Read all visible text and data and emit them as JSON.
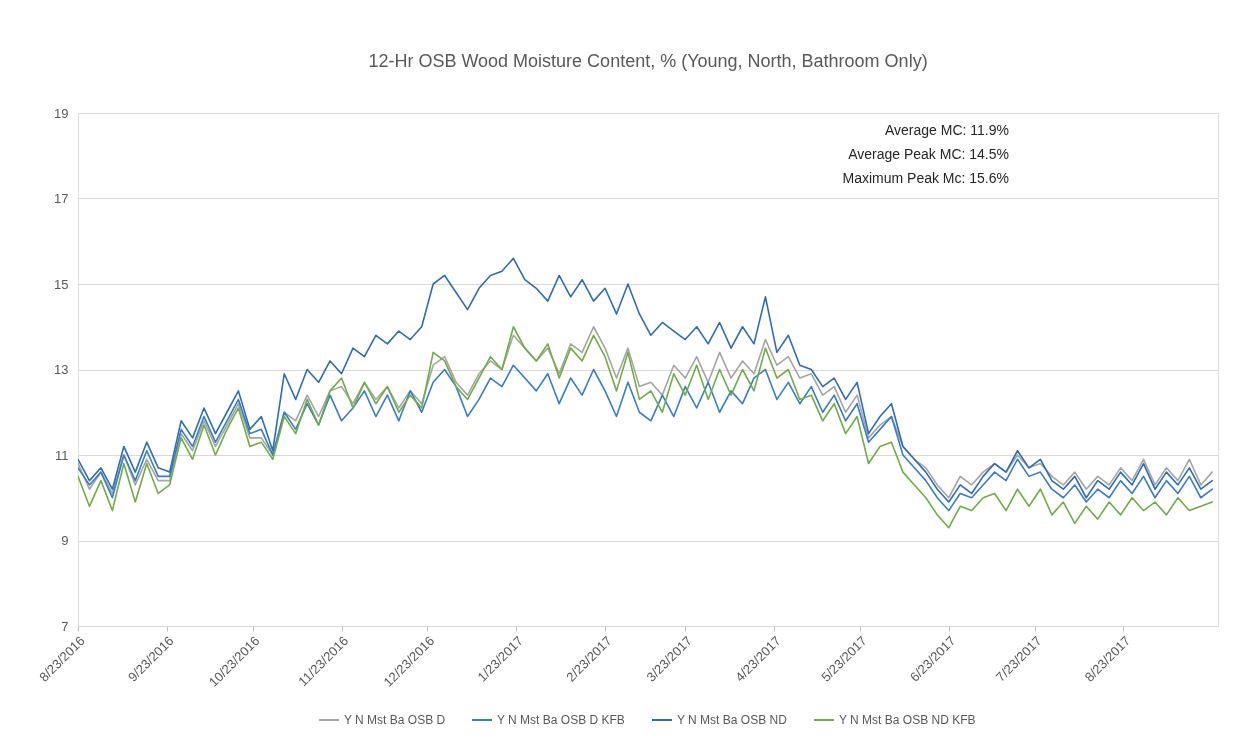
{
  "chart_data": {
    "type": "line",
    "title": "12-Hr OSB Wood Moisture Content, % (Young, North, Bathroom Only)",
    "annotations": [
      "Average MC: 11.9%",
      "Average Peak MC: 14.5%",
      "Maximum Peak Mc: 15.6%"
    ],
    "x": [
      "2016-08-23",
      "2016-08-27",
      "2016-08-31",
      "2016-09-04",
      "2016-09-08",
      "2016-09-12",
      "2016-09-16",
      "2016-09-20",
      "2016-09-24",
      "2016-09-28",
      "2016-10-02",
      "2016-10-06",
      "2016-10-10",
      "2016-10-14",
      "2016-10-18",
      "2016-10-22",
      "2016-10-26",
      "2016-10-30",
      "2016-11-03",
      "2016-11-07",
      "2016-11-11",
      "2016-11-15",
      "2016-11-19",
      "2016-11-23",
      "2016-11-27",
      "2016-12-01",
      "2016-12-05",
      "2016-12-09",
      "2016-12-13",
      "2016-12-17",
      "2016-12-21",
      "2016-12-25",
      "2016-12-29",
      "2017-01-02",
      "2017-01-06",
      "2017-01-10",
      "2017-01-14",
      "2017-01-18",
      "2017-01-22",
      "2017-01-26",
      "2017-01-30",
      "2017-02-03",
      "2017-02-07",
      "2017-02-11",
      "2017-02-15",
      "2017-02-19",
      "2017-02-23",
      "2017-02-27",
      "2017-03-03",
      "2017-03-07",
      "2017-03-11",
      "2017-03-15",
      "2017-03-19",
      "2017-03-23",
      "2017-03-27",
      "2017-03-31",
      "2017-04-04",
      "2017-04-08",
      "2017-04-12",
      "2017-04-16",
      "2017-04-20",
      "2017-04-24",
      "2017-04-28",
      "2017-05-02",
      "2017-05-06",
      "2017-05-10",
      "2017-05-14",
      "2017-05-18",
      "2017-05-22",
      "2017-05-26",
      "2017-05-30",
      "2017-06-03",
      "2017-06-07",
      "2017-06-11",
      "2017-06-15",
      "2017-06-19",
      "2017-06-23",
      "2017-06-27",
      "2017-07-01",
      "2017-07-05",
      "2017-07-09",
      "2017-07-13",
      "2017-07-17",
      "2017-07-21",
      "2017-07-25",
      "2017-07-29",
      "2017-08-02",
      "2017-08-06",
      "2017-08-10",
      "2017-08-14",
      "2017-08-18",
      "2017-08-22",
      "2017-08-26",
      "2017-08-30",
      "2017-09-03",
      "2017-09-07",
      "2017-09-11",
      "2017-09-15",
      "2017-09-19",
      "2017-09-23"
    ],
    "series": [
      {
        "name": "Y N Mst Ba OSB D",
        "color": "#a5a5a5",
        "values": [
          10.8,
          10.2,
          10.6,
          10.1,
          11.0,
          10.3,
          10.9,
          10.4,
          10.4,
          11.5,
          11.1,
          11.8,
          11.2,
          11.7,
          12.2,
          11.4,
          11.4,
          11.0,
          12.0,
          11.8,
          12.4,
          11.9,
          12.5,
          12.6,
          12.2,
          12.7,
          12.3,
          12.6,
          12.1,
          12.5,
          12.2,
          13.1,
          13.3,
          12.7,
          12.4,
          12.9,
          13.2,
          13.0,
          13.8,
          13.5,
          13.2,
          13.5,
          12.9,
          13.6,
          13.4,
          14.0,
          13.5,
          12.8,
          13.5,
          12.6,
          12.7,
          12.4,
          13.1,
          12.8,
          13.3,
          12.7,
          13.4,
          12.8,
          13.2,
          12.9,
          13.7,
          13.1,
          13.3,
          12.8,
          12.9,
          12.4,
          12.6,
          12.0,
          12.4,
          11.4,
          11.7,
          11.9,
          11.2,
          10.9,
          10.7,
          10.3,
          10.0,
          10.5,
          10.3,
          10.6,
          10.8,
          10.6,
          11.0,
          10.7,
          10.8,
          10.5,
          10.3,
          10.6,
          10.2,
          10.5,
          10.3,
          10.7,
          10.4,
          10.9,
          10.3,
          10.7,
          10.4,
          10.9,
          10.3,
          10.6
        ]
      },
      {
        "name": "Y N Mst Ba OSB D KFB",
        "color": "#3a7dc4",
        "values": [
          10.7,
          10.3,
          10.6,
          10.0,
          11.0,
          10.4,
          11.1,
          10.5,
          10.5,
          11.6,
          11.2,
          11.9,
          11.3,
          11.8,
          12.3,
          11.5,
          11.6,
          11.0,
          12.0,
          11.6,
          12.2,
          11.7,
          12.4,
          11.8,
          12.1,
          12.5,
          11.9,
          12.4,
          11.8,
          12.5,
          12.0,
          12.7,
          13.0,
          12.6,
          11.9,
          12.3,
          12.8,
          12.6,
          13.1,
          12.8,
          12.5,
          12.9,
          12.2,
          12.8,
          12.4,
          13.0,
          12.5,
          11.9,
          12.7,
          12.0,
          11.8,
          12.4,
          11.9,
          12.6,
          12.1,
          12.7,
          12.0,
          12.5,
          12.2,
          12.8,
          13.0,
          12.3,
          12.7,
          12.2,
          12.6,
          12.0,
          12.4,
          11.8,
          12.2,
          11.3,
          11.6,
          11.9,
          11.0,
          10.7,
          10.4,
          10.0,
          9.7,
          10.1,
          10.0,
          10.3,
          10.6,
          10.4,
          10.9,
          10.5,
          10.6,
          10.2,
          10.0,
          10.3,
          9.9,
          10.2,
          10.0,
          10.4,
          10.1,
          10.5,
          10.0,
          10.4,
          10.1,
          10.5,
          10.0,
          10.2
        ]
      },
      {
        "name": "Y N Mst Ba OSB ND",
        "color": "#2e6db4",
        "values": [
          10.9,
          10.4,
          10.7,
          10.2,
          11.2,
          10.6,
          11.3,
          10.7,
          10.6,
          11.8,
          11.4,
          12.1,
          11.5,
          12.0,
          12.5,
          11.6,
          11.9,
          11.1,
          12.9,
          12.3,
          13.0,
          12.7,
          13.2,
          12.9,
          13.5,
          13.3,
          13.8,
          13.6,
          13.9,
          13.7,
          14.0,
          15.0,
          15.2,
          14.8,
          14.4,
          14.9,
          15.2,
          15.3,
          15.6,
          15.1,
          14.9,
          14.6,
          15.2,
          14.7,
          15.1,
          14.6,
          14.9,
          14.3,
          15.0,
          14.3,
          13.8,
          14.1,
          13.9,
          13.7,
          14.0,
          13.6,
          14.1,
          13.5,
          14.0,
          13.6,
          14.7,
          13.4,
          13.8,
          13.1,
          13.0,
          12.6,
          12.8,
          12.3,
          12.7,
          11.5,
          11.9,
          12.2,
          11.2,
          10.9,
          10.6,
          10.2,
          9.9,
          10.3,
          10.1,
          10.5,
          10.8,
          10.6,
          11.1,
          10.7,
          10.9,
          10.4,
          10.2,
          10.5,
          10.0,
          10.4,
          10.2,
          10.6,
          10.3,
          10.8,
          10.2,
          10.6,
          10.3,
          10.7,
          10.2,
          10.4
        ]
      },
      {
        "name": "Y N Mst Ba OSB ND KFB",
        "color": "#70ad47",
        "values": [
          10.5,
          9.8,
          10.4,
          9.7,
          10.8,
          9.9,
          10.8,
          10.1,
          10.3,
          11.4,
          10.9,
          11.7,
          11.0,
          11.6,
          12.1,
          11.2,
          11.3,
          10.9,
          11.9,
          11.5,
          12.3,
          11.7,
          12.5,
          12.8,
          12.1,
          12.7,
          12.2,
          12.6,
          12.0,
          12.4,
          12.1,
          13.4,
          13.2,
          12.6,
          12.3,
          12.8,
          13.3,
          13.0,
          14.0,
          13.5,
          13.2,
          13.6,
          12.8,
          13.5,
          13.2,
          13.8,
          13.3,
          12.5,
          13.4,
          12.3,
          12.5,
          12.0,
          12.9,
          12.4,
          13.1,
          12.3,
          13.0,
          12.4,
          13.0,
          12.5,
          13.5,
          12.8,
          13.0,
          12.3,
          12.4,
          11.8,
          12.2,
          11.5,
          11.9,
          10.8,
          11.2,
          11.3,
          10.6,
          10.3,
          10.0,
          9.6,
          9.3,
          9.8,
          9.7,
          10.0,
          10.1,
          9.7,
          10.2,
          9.8,
          10.2,
          9.6,
          9.9,
          9.4,
          9.8,
          9.5,
          9.9,
          9.6,
          10.0,
          9.7,
          9.9,
          9.6,
          10.0,
          9.7,
          9.8,
          9.9
        ]
      }
    ],
    "xlim": [
      "2016-08-23",
      "2017-09-25"
    ],
    "xticks": [
      {
        "value": "2016-08-23",
        "label": "8/23/2016"
      },
      {
        "value": "2016-09-23",
        "label": "9/23/2016"
      },
      {
        "value": "2016-10-23",
        "label": "10/23/2016"
      },
      {
        "value": "2016-11-23",
        "label": "11/23/2016"
      },
      {
        "value": "2016-12-23",
        "label": "12/23/2016"
      },
      {
        "value": "2017-01-23",
        "label": "1/23/2017"
      },
      {
        "value": "2017-02-23",
        "label": "2/23/2017"
      },
      {
        "value": "2017-03-23",
        "label": "3/23/2017"
      },
      {
        "value": "2017-04-23",
        "label": "4/23/2017"
      },
      {
        "value": "2017-05-23",
        "label": "5/23/2017"
      },
      {
        "value": "2017-06-23",
        "label": "6/23/2017"
      },
      {
        "value": "2017-07-23",
        "label": "7/23/2017"
      },
      {
        "value": "2017-08-23",
        "label": "8/23/2017"
      }
    ],
    "ylim": [
      7,
      19
    ],
    "yticks": [
      7,
      9,
      11,
      13,
      15,
      17,
      19
    ],
    "grid": "y",
    "legend": "bottom"
  }
}
